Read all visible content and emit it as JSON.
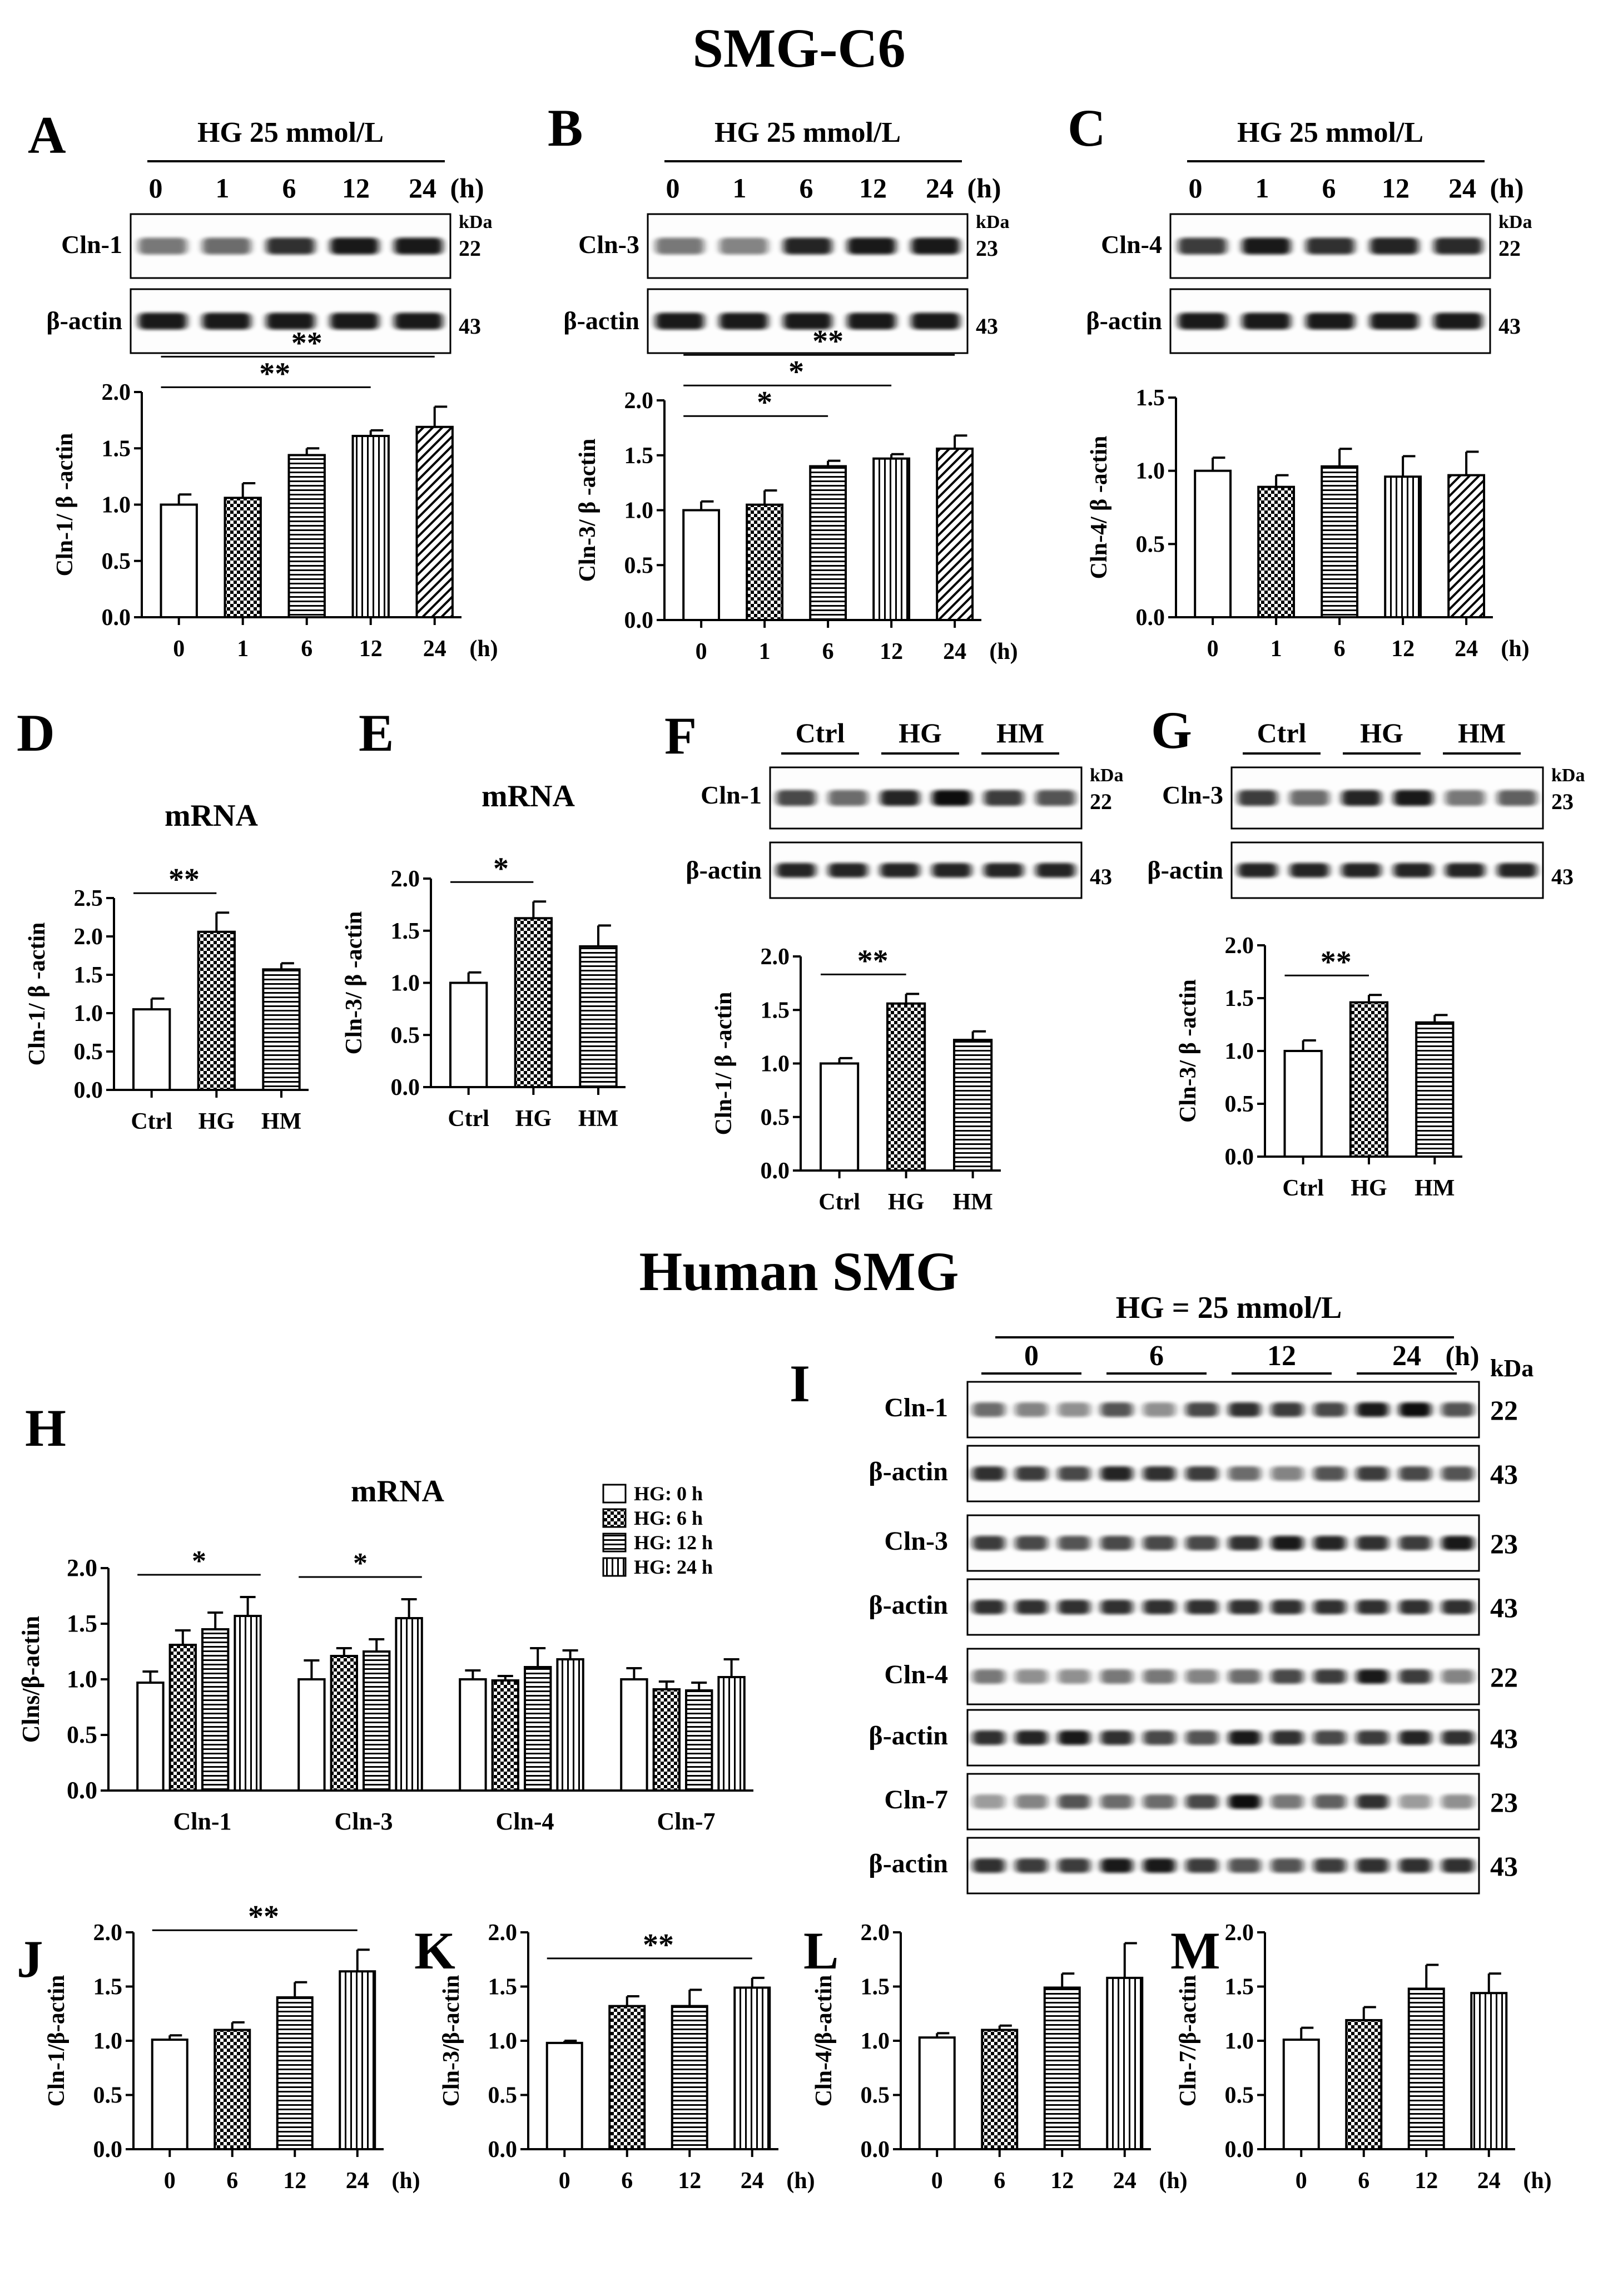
{
  "sections": {
    "top": "SMG-C6",
    "bottom": "Human SMG"
  },
  "panel_letters": [
    "A",
    "B",
    "C",
    "D",
    "E",
    "F",
    "G",
    "H",
    "I",
    "J",
    "K",
    "L",
    "M"
  ],
  "blot_labels": {
    "hg_25": "HG 25 mmol/L",
    "hg_eq_25": "HG = 25 mmol/L",
    "time_0_1_6_12_24": [
      "0",
      "1",
      "6",
      "12",
      "24"
    ],
    "time_0_6_12_24": [
      "0",
      "6",
      "12",
      "24"
    ],
    "hours": "(h)",
    "kda": "kDa",
    "beta_actin": "β-actin",
    "cln1": "Cln-1",
    "cln3": "Cln-3",
    "cln4": "Cln-4",
    "cln7": "Cln-7",
    "groups": [
      "Ctrl",
      "HG",
      "HM"
    ],
    "mw": {
      "cln1": "22",
      "cln3": "23",
      "cln4": "22",
      "cln7": "23",
      "actin": "43"
    }
  },
  "legend_H": [
    "HG: 0 h",
    "HG: 6 h",
    "HG: 12 h",
    "HG: 24 h"
  ],
  "chart_data": [
    {
      "panel": "A",
      "type": "bar",
      "categories": [
        "0",
        "1",
        "6",
        "12",
        "24"
      ],
      "xunit": "(h)",
      "values": [
        1.0,
        1.06,
        1.44,
        1.61,
        1.69
      ],
      "errors": [
        0.09,
        0.13,
        0.06,
        0.05,
        0.18
      ],
      "ylabel": "Cln-1/ β -actin",
      "ylim": [
        0,
        2.0
      ],
      "yticks": [
        "0.0",
        "0.5",
        "1.0",
        "1.5",
        "2.0"
      ],
      "significance": [
        {
          "from": 0,
          "to": 3,
          "label": "**"
        },
        {
          "from": 0,
          "to": 4,
          "label": "**"
        }
      ]
    },
    {
      "panel": "B",
      "type": "bar",
      "categories": [
        "0",
        "1",
        "6",
        "12",
        "24"
      ],
      "xunit": "(h)",
      "values": [
        1.0,
        1.05,
        1.4,
        1.47,
        1.56
      ],
      "errors": [
        0.08,
        0.13,
        0.05,
        0.04,
        0.12
      ],
      "ylabel": "Cln-3/ β -actin",
      "ylim": [
        0,
        2.0
      ],
      "yticks": [
        "0.0",
        "0.5",
        "1.0",
        "1.5",
        "2.0"
      ],
      "significance": [
        {
          "from": 0,
          "to": 2,
          "label": "*"
        },
        {
          "from": 0,
          "to": 3,
          "label": "*"
        },
        {
          "from": 0,
          "to": 4,
          "label": "**"
        }
      ]
    },
    {
      "panel": "C",
      "type": "bar",
      "categories": [
        "0",
        "1",
        "6",
        "12",
        "24"
      ],
      "xunit": "(h)",
      "values": [
        1.0,
        0.89,
        1.03,
        0.96,
        0.97
      ],
      "errors": [
        0.09,
        0.08,
        0.12,
        0.14,
        0.16
      ],
      "ylabel": "Cln-4/ β -actin",
      "ylim": [
        0,
        1.5
      ],
      "yticks": [
        "0.0",
        "0.5",
        "1.0",
        "1.5"
      ],
      "significance": []
    },
    {
      "panel": "D",
      "type": "bar",
      "title": "mRNA",
      "categories": [
        "Ctrl",
        "HG",
        "HM"
      ],
      "values": [
        1.05,
        2.06,
        1.57
      ],
      "errors": [
        0.14,
        0.25,
        0.08
      ],
      "ylabel": "Cln-1/ β -actin",
      "ylim": [
        0,
        2.5
      ],
      "yticks": [
        "0.0",
        "0.5",
        "1.0",
        "1.5",
        "2.0",
        "2.5"
      ],
      "significance": [
        {
          "from": 0,
          "to": 1,
          "label": "**"
        }
      ]
    },
    {
      "panel": "E",
      "type": "bar",
      "title": "mRNA",
      "categories": [
        "Ctrl",
        "HG",
        "HM"
      ],
      "values": [
        1.0,
        1.62,
        1.35
      ],
      "errors": [
        0.1,
        0.16,
        0.2
      ],
      "ylabel": "Cln-3/ β -actin",
      "ylim": [
        0,
        2.0
      ],
      "yticks": [
        "0.0",
        "0.5",
        "1.0",
        "1.5",
        "2.0"
      ],
      "significance": [
        {
          "from": 0,
          "to": 1,
          "label": "*"
        }
      ]
    },
    {
      "panel": "F",
      "type": "bar",
      "categories": [
        "Ctrl",
        "HG",
        "HM"
      ],
      "values": [
        1.0,
        1.56,
        1.22
      ],
      "errors": [
        0.05,
        0.09,
        0.08
      ],
      "ylabel": "Cln-1/ β -actin",
      "ylim": [
        0,
        2.0
      ],
      "yticks": [
        "0.0",
        "0.5",
        "1.0",
        "1.5",
        "2.0"
      ],
      "significance": [
        {
          "from": 0,
          "to": 1,
          "label": "**"
        }
      ]
    },
    {
      "panel": "G",
      "type": "bar",
      "categories": [
        "Ctrl",
        "HG",
        "HM"
      ],
      "values": [
        1.0,
        1.46,
        1.27
      ],
      "errors": [
        0.1,
        0.07,
        0.07
      ],
      "ylabel": "Cln-3/ β -actin",
      "ylim": [
        0,
        2.0
      ],
      "yticks": [
        "0.0",
        "0.5",
        "1.0",
        "1.5",
        "2.0"
      ],
      "significance": [
        {
          "from": 0,
          "to": 1,
          "label": "**"
        }
      ]
    },
    {
      "panel": "H",
      "type": "bar",
      "title": "mRNA",
      "categories": [
        "Cln-1",
        "Cln-3",
        "Cln-4",
        "Cln-7"
      ],
      "ylabel": "Clns/β-actin",
      "ylim": [
        0,
        2.0
      ],
      "yticks": [
        "0.0",
        "0.5",
        "1.0",
        "1.5",
        "2.0"
      ],
      "legend_position": "top-right",
      "series": [
        {
          "name": "HG: 0 h",
          "values": [
            0.97,
            1.0,
            1.0,
            1.0
          ],
          "errors": [
            0.1,
            0.17,
            0.08,
            0.1
          ]
        },
        {
          "name": "HG: 6 h",
          "values": [
            1.31,
            1.21,
            0.99,
            0.91
          ],
          "errors": [
            0.13,
            0.07,
            0.04,
            0.07
          ]
        },
        {
          "name": "HG: 12 h",
          "values": [
            1.45,
            1.25,
            1.11,
            0.9
          ],
          "errors": [
            0.15,
            0.11,
            0.17,
            0.07
          ]
        },
        {
          "name": "HG: 24 h",
          "values": [
            1.57,
            1.55,
            1.18,
            1.02
          ],
          "errors": [
            0.17,
            0.17,
            0.08,
            0.16
          ]
        }
      ],
      "significance": [
        {
          "group": 0,
          "label": "*"
        },
        {
          "group": 1,
          "label": "*"
        }
      ]
    },
    {
      "panel": "J",
      "type": "bar",
      "categories": [
        "0",
        "6",
        "12",
        "24"
      ],
      "xunit": "(h)",
      "values": [
        1.01,
        1.1,
        1.4,
        1.64
      ],
      "errors": [
        0.04,
        0.07,
        0.14,
        0.2
      ],
      "ylabel": "Cln-1/β-actin",
      "ylim": [
        0,
        2.0
      ],
      "yticks": [
        "0.0",
        "0.5",
        "1.0",
        "1.5",
        "2.0"
      ],
      "significance": [
        {
          "from": 0,
          "to": 3,
          "label": "**"
        }
      ]
    },
    {
      "panel": "K",
      "type": "bar",
      "categories": [
        "0",
        "6",
        "12",
        "24"
      ],
      "xunit": "(h)",
      "values": [
        0.98,
        1.32,
        1.32,
        1.49
      ],
      "errors": [
        0.02,
        0.09,
        0.15,
        0.09
      ],
      "ylabel": "Cln-3/β-actin",
      "ylim": [
        0,
        2.0
      ],
      "yticks": [
        "0.0",
        "0.5",
        "1.0",
        "1.5",
        "2.0"
      ],
      "significance": [
        {
          "from": 0,
          "to": 3,
          "label": "**"
        }
      ]
    },
    {
      "panel": "L",
      "type": "bar",
      "categories": [
        "0",
        "6",
        "12",
        "24"
      ],
      "xunit": "(h)",
      "values": [
        1.03,
        1.1,
        1.49,
        1.58
      ],
      "errors": [
        0.04,
        0.04,
        0.13,
        0.32
      ],
      "ylabel": "Cln-4/β-actin",
      "ylim": [
        0,
        2.0
      ],
      "yticks": [
        "0.0",
        "0.5",
        "1.0",
        "1.5",
        "2.0"
      ],
      "significance": []
    },
    {
      "panel": "M",
      "type": "bar",
      "categories": [
        "0",
        "6",
        "12",
        "24"
      ],
      "xunit": "(h)",
      "values": [
        1.01,
        1.19,
        1.48,
        1.44
      ],
      "errors": [
        0.11,
        0.12,
        0.22,
        0.18
      ],
      "ylabel": "Cln-7/β-actin",
      "ylim": [
        0,
        2.0
      ],
      "yticks": [
        "0.0",
        "0.5",
        "1.0",
        "1.5",
        "2.0"
      ],
      "significance": []
    }
  ]
}
